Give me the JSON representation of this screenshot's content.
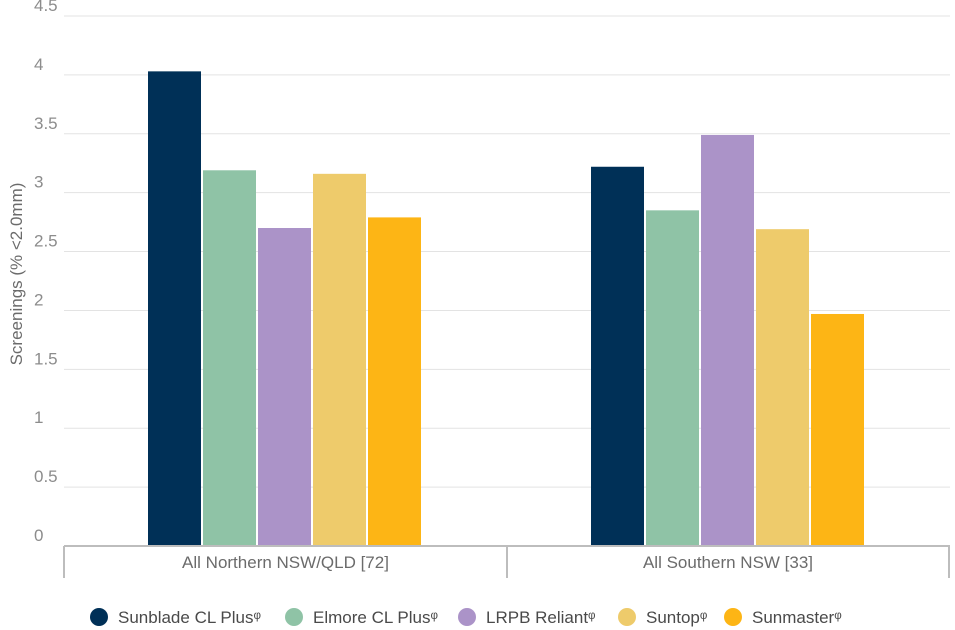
{
  "chart_data": {
    "type": "bar",
    "categories": [
      "All Northern NSW/QLD [72]",
      "All Southern NSW [33]"
    ],
    "series": [
      {
        "name": "Sunblade CL Plusᵠ",
        "color": "#003057",
        "values": [
          4.03,
          3.22
        ]
      },
      {
        "name": "Elmore CL Plusᵠ",
        "color": "#8fc3a6",
        "values": [
          3.19,
          2.85
        ]
      },
      {
        "name": "LRPB Reliantᵠ",
        "color": "#ab93c8",
        "values": [
          2.7,
          3.49
        ]
      },
      {
        "name": "Suntopᵠ",
        "color": "#eecb6b",
        "values": [
          3.16,
          2.69
        ]
      },
      {
        "name": "Sunmasterᵠ",
        "color": "#fdb515",
        "values": [
          2.79,
          1.97
        ]
      }
    ],
    "ylabel": "Screenings (% <2.0mm)",
    "ylim": [
      0,
      4.5
    ],
    "yticks": [
      "0",
      "0.5",
      "1",
      "1.5",
      "2",
      "2.5",
      "3",
      "3.5",
      "4",
      "4.5"
    ],
    "grid": true,
    "legend_position": "bottom"
  }
}
